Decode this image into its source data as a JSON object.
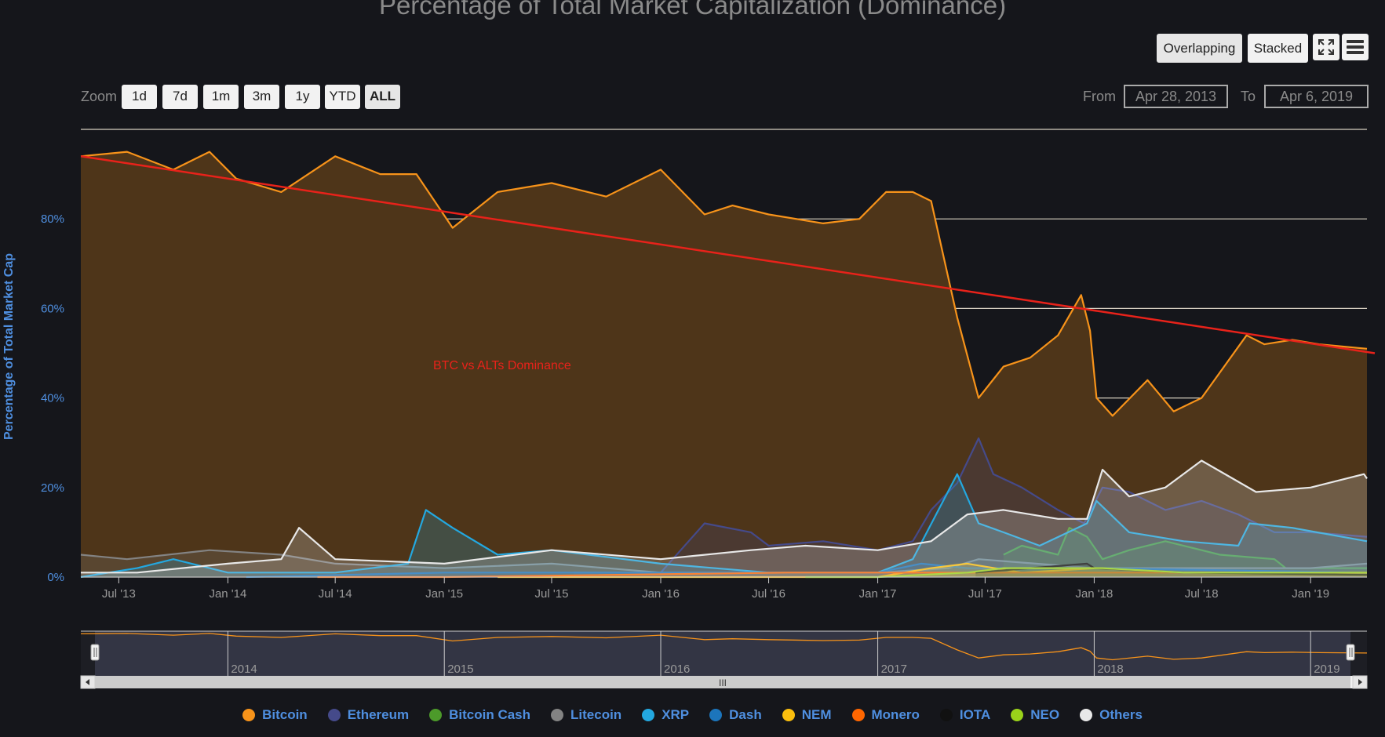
{
  "chart_data": {
    "type": "area",
    "title": "Percentage of Total Market Capitalization (Dominance)",
    "ylabel": "Percentage of Total Market Cap",
    "ylim": [
      0,
      100
    ],
    "y_ticks": [
      "0%",
      "20%",
      "40%",
      "60%",
      "80%"
    ],
    "x_ticks": [
      "Jul '13",
      "Jan '14",
      "Jul '14",
      "Jan '15",
      "Jul '15",
      "Jan '16",
      "Jul '16",
      "Jan '17",
      "Jul '17",
      "Jan '18",
      "Jul '18",
      "Jan '19"
    ],
    "x_range": [
      "2013-04-28",
      "2019-04-06"
    ],
    "grid": true,
    "annotation": {
      "text": "BTC vs ALTs Dominance",
      "trendline_from": [
        "2013-04-28",
        94
      ],
      "trendline_to": [
        "2019-04-06",
        50
      ],
      "color": "#e8221a"
    },
    "series": [
      {
        "name": "Bitcoin",
        "color": "#f7931a",
        "x": [
          "2013-04-28",
          "2013-07-15",
          "2013-10-01",
          "2013-12-01",
          "2014-01-15",
          "2014-04-01",
          "2014-07-01",
          "2014-09-15",
          "2014-11-15",
          "2015-01-15",
          "2015-04-01",
          "2015-07-01",
          "2015-10-01",
          "2016-01-01",
          "2016-03-15",
          "2016-05-01",
          "2016-07-01",
          "2016-10-01",
          "2016-12-01",
          "2017-01-15",
          "2017-03-01",
          "2017-04-01",
          "2017-05-15",
          "2017-06-20",
          "2017-08-01",
          "2017-09-15",
          "2017-11-01",
          "2017-12-10",
          "2017-12-25",
          "2018-01-05",
          "2018-02-01",
          "2018-04-01",
          "2018-05-15",
          "2018-07-01",
          "2018-09-15",
          "2018-10-15",
          "2018-12-01",
          "2019-01-15",
          "2019-04-06"
        ],
        "values": [
          94,
          95,
          91,
          95,
          89,
          86,
          94,
          90,
          90,
          78,
          86,
          88,
          85,
          91,
          81,
          83,
          81,
          79,
          80,
          86,
          86,
          84,
          58,
          40,
          47,
          49,
          54,
          63,
          55,
          40,
          36,
          44,
          37,
          40,
          54,
          52,
          53,
          52,
          51
        ]
      },
      {
        "name": "Ethereum",
        "color": "#454a8a",
        "x": [
          "2015-08-07",
          "2016-01-01",
          "2016-03-15",
          "2016-06-01",
          "2016-07-01",
          "2016-10-01",
          "2017-01-01",
          "2017-03-01",
          "2017-04-01",
          "2017-05-15",
          "2017-06-20",
          "2017-07-15",
          "2017-09-01",
          "2017-11-01",
          "2017-12-15",
          "2018-01-15",
          "2018-03-01",
          "2018-05-01",
          "2018-07-01",
          "2018-09-01",
          "2018-11-01",
          "2019-01-01",
          "2019-04-06"
        ],
        "values": [
          1,
          1,
          12,
          10,
          7,
          8,
          6,
          8,
          15,
          21,
          31,
          23,
          20,
          15,
          12,
          20,
          19,
          15,
          17,
          14,
          10,
          10,
          9
        ]
      },
      {
        "name": "Bitcoin Cash",
        "color": "#4c9a2a",
        "x": [
          "2017-08-01",
          "2017-09-01",
          "2017-11-01",
          "2017-11-20",
          "2017-12-20",
          "2018-01-15",
          "2018-03-01",
          "2018-05-01",
          "2018-08-01",
          "2018-11-01",
          "2018-11-20",
          "2019-04-06"
        ],
        "values": [
          5,
          7,
          5,
          11,
          9,
          4,
          6,
          8,
          5,
          4,
          2,
          2
        ]
      },
      {
        "name": "Litecoin",
        "color": "#838383",
        "x": [
          "2013-04-28",
          "2013-07-15",
          "2013-12-01",
          "2014-04-01",
          "2014-07-01",
          "2015-01-01",
          "2015-07-01",
          "2016-01-01",
          "2017-01-01",
          "2017-05-01",
          "2017-06-20",
          "2018-01-01",
          "2019-01-01",
          "2019-04-06"
        ],
        "values": [
          5,
          4,
          6,
          5,
          3,
          2,
          3,
          1,
          1,
          2,
          4,
          2,
          2,
          3
        ]
      },
      {
        "name": "XRP",
        "color": "#23a8e0",
        "x": [
          "2013-04-28",
          "2013-08-01",
          "2013-10-01",
          "2014-01-01",
          "2014-07-01",
          "2014-11-01",
          "2014-12-01",
          "2015-01-15",
          "2015-04-01",
          "2015-07-01",
          "2016-01-01",
          "2016-07-01",
          "2017-01-01",
          "2017-03-01",
          "2017-05-15",
          "2017-06-20",
          "2017-08-01",
          "2017-10-01",
          "2017-12-20",
          "2018-01-05",
          "2018-03-01",
          "2018-06-01",
          "2018-09-01",
          "2018-09-20",
          "2018-12-01",
          "2019-04-06"
        ],
        "values": [
          0,
          2,
          4,
          1,
          1,
          3,
          15,
          11,
          5,
          6,
          3,
          1,
          1,
          4,
          23,
          12,
          10,
          7,
          12,
          17,
          10,
          8,
          7,
          12,
          11,
          8
        ]
      },
      {
        "name": "Dash",
        "color": "#1c75bc",
        "x": [
          "2014-02-01",
          "2015-01-01",
          "2016-01-01",
          "2017-01-01",
          "2017-03-15",
          "2017-06-01",
          "2018-01-01",
          "2019-04-06"
        ],
        "values": [
          0,
          1,
          1,
          1,
          3,
          2,
          2,
          1
        ]
      },
      {
        "name": "NEM",
        "color": "#fabe0e",
        "x": [
          "2015-04-01",
          "2016-01-01",
          "2017-01-01",
          "2017-04-01",
          "2017-06-01",
          "2017-09-01",
          "2018-01-05",
          "2018-06-01",
          "2019-04-06"
        ],
        "values": [
          0,
          0,
          0,
          2,
          3,
          1,
          2,
          1,
          0.5
        ]
      },
      {
        "name": "Monero",
        "color": "#ff6600",
        "x": [
          "2014-06-01",
          "2015-01-01",
          "2016-08-01",
          "2017-01-01",
          "2017-06-01",
          "2018-01-01",
          "2019-04-06"
        ],
        "values": [
          0,
          0,
          1,
          1,
          1,
          1,
          1
        ]
      },
      {
        "name": "IOTA",
        "color": "#111111",
        "x": [
          "2017-06-15",
          "2017-12-20",
          "2018-01-01",
          "2018-06-01",
          "2019-04-06"
        ],
        "values": [
          1,
          3,
          2,
          1,
          0.5
        ]
      },
      {
        "name": "NEO",
        "color": "#9ad21a",
        "x": [
          "2016-09-01",
          "2017-01-01",
          "2017-06-01",
          "2017-08-01",
          "2018-01-15",
          "2018-06-01",
          "2019-04-06"
        ],
        "values": [
          0,
          0,
          1,
          2,
          2,
          1,
          1
        ]
      },
      {
        "name": "Others",
        "color": "#e8e8e8",
        "x": [
          "2013-04-28",
          "2013-08-01",
          "2014-01-01",
          "2014-04-01",
          "2014-05-01",
          "2014-07-01",
          "2015-01-01",
          "2015-07-01",
          "2016-01-01",
          "2016-06-01",
          "2016-09-01",
          "2017-01-01",
          "2017-04-01",
          "2017-06-01",
          "2017-08-01",
          "2017-11-01",
          "2017-12-20",
          "2018-01-15",
          "2018-03-01",
          "2018-05-01",
          "2018-07-01",
          "2018-10-01",
          "2019-01-01",
          "2019-04-01",
          "2019-04-06"
        ],
        "values": [
          1,
          1,
          3,
          4,
          11,
          4,
          3,
          6,
          4,
          6,
          7,
          6,
          8,
          14,
          15,
          13,
          13,
          24,
          18,
          20,
          26,
          19,
          20,
          23,
          22
        ]
      }
    ],
    "navigator": {
      "years": [
        "2014",
        "2015",
        "2016",
        "2017",
        "2018",
        "2019"
      ],
      "handle_grip": "III"
    }
  },
  "toolbar": {
    "overlapping": "Overlapping",
    "stacked": "Stacked",
    "fullscreen_icon": "fullscreen-icon",
    "menu_icon": "hamburger-menu-icon"
  },
  "range_selector": {
    "zoom_label": "Zoom",
    "buttons": [
      "1d",
      "7d",
      "1m",
      "3m",
      "1y",
      "YTD",
      "ALL"
    ],
    "active": "ALL",
    "from_label": "From",
    "from_value": "Apr 28, 2013",
    "to_label": "To",
    "to_value": "Apr 6, 2019"
  }
}
